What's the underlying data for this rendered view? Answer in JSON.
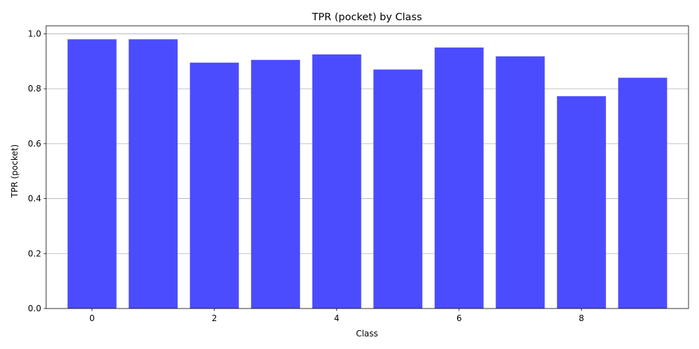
{
  "chart_data": {
    "type": "bar",
    "title": "TPR (pocket) by Class",
    "xlabel": "Class",
    "ylabel": "TPR (pocket)",
    "categories": [
      0,
      1,
      2,
      3,
      4,
      5,
      6,
      7,
      8,
      9
    ],
    "values": [
      0.98,
      0.98,
      0.895,
      0.905,
      0.925,
      0.87,
      0.95,
      0.918,
      0.773,
      0.84
    ],
    "xlim": [
      -0.75,
      9.75
    ],
    "ylim": [
      0,
      1.029
    ],
    "x_ticks": [
      0,
      2,
      4,
      6,
      8
    ],
    "y_ticks": [
      0.0,
      0.2,
      0.4,
      0.6,
      0.8,
      1.0
    ],
    "y_tick_labels": [
      "0.0",
      "0.2",
      "0.4",
      "0.6",
      "0.8",
      "1.0"
    ],
    "x_tick_labels": [
      "0",
      "2",
      "4",
      "6",
      "8"
    ],
    "grid": "y",
    "bar_color": "#4c4cff",
    "grid_color": "#b0b0b0"
  }
}
